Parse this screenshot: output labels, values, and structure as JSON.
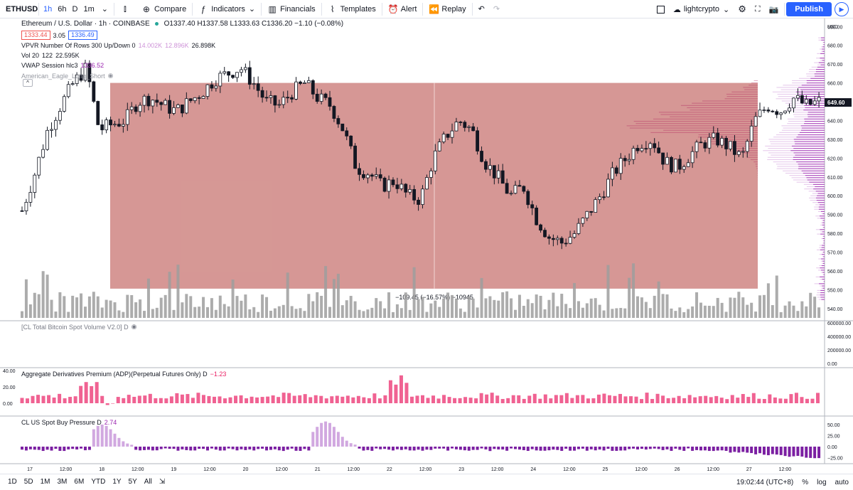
{
  "toolbar": {
    "symbol": "ETHUSD",
    "intervals": [
      "1h",
      "6h",
      "D",
      "1m"
    ],
    "compare": "Compare",
    "indicators": "Indicators",
    "financials": "Financials",
    "templates": "Templates",
    "alert": "Alert",
    "replay": "Replay",
    "layout_name": "lightcrypto",
    "publish": "Publish"
  },
  "legend": {
    "title": "Ethereum / U.S. Dollar · 1h · COINBASE",
    "ohlc": "O1337.40 H1337.58 L1333.63 C1336.20 −1.10 (−0.08%)",
    "bid": "1333.44",
    "spread": "3.05",
    "ask": "1336.49",
    "vpvr_label": "VPVR Number Of Rows 300 Up/Down 0",
    "vpvr_v1": "14.002K",
    "vpvr_v2": "12.896K",
    "vpvr_v3": "26.898K",
    "vol_label": "Vol 20",
    "vol_v1": "122",
    "vol_v2": "22.595K",
    "vwap_label": "VWAP Session hlc3",
    "vwap_value": "1336.52",
    "eagle_label": "American_Eagle_Long_Short"
  },
  "measure_label": "−109.45 (−16.57%) −10945",
  "price_axis": [
    "690.00",
    "680.00",
    "670.00",
    "660.00",
    "650.00",
    "640.00",
    "630.00",
    "620.00",
    "610.00",
    "600.00",
    "590.00",
    "580.00",
    "570.00",
    "560.00",
    "550.00",
    "540.00"
  ],
  "price_axis_unit": "USD",
  "last_price": "649.60",
  "panes": {
    "btc_volume": {
      "label": "[CL Total Bitcoin Spot Volume V2.0] D",
      "axis": [
        "600000.00",
        "400000.00",
        "200000.00",
        "0.00"
      ]
    },
    "adp": {
      "label": "Aggregate Derivatives Premium (ADP)(Perpetual Futures Only) D",
      "value": "−1.23",
      "axis": [
        "40.00",
        "20.00",
        "0.00"
      ]
    },
    "spot_buy": {
      "label": "CL US Spot Buy Pressure D",
      "value": "2.74",
      "axis": [
        "50.00",
        "25.00",
        "0.00",
        "−25.00"
      ]
    }
  },
  "time_axis": [
    "17",
    "12:00",
    "18",
    "12:00",
    "19",
    "12:00",
    "20",
    "12:00",
    "21",
    "12:00",
    "22",
    "12:00",
    "23",
    "12:00",
    "24",
    "12:00",
    "25",
    "12:00",
    "26",
    "12:00",
    "27",
    "12:00"
  ],
  "ranges": [
    "1D",
    "5D",
    "1M",
    "3M",
    "6M",
    "YTD",
    "1Y",
    "5Y",
    "All"
  ],
  "status": {
    "clock": "19:02:44 (UTC+8)",
    "percent": "%",
    "log": "log",
    "auto": "auto"
  },
  "colors": {
    "accent": "#2962ff",
    "up": "#ffffff",
    "down": "#131722",
    "zone": "#c0605c",
    "vpvr": "#9c27b0",
    "adp": "#f06292",
    "spot_buy_pos": "#d1a8e0",
    "spot_buy_neg": "#7b1fa2"
  },
  "chart_data": [
    {
      "type": "candlestick",
      "title": "Ethereum / U.S. Dollar · 1h · COINBASE",
      "ylim": [
        535,
        692
      ],
      "x": [
        "17",
        "18",
        "19",
        "20",
        "21",
        "22",
        "23",
        "24",
        "25",
        "26",
        "27"
      ],
      "close_path": [
        592,
        612,
        635,
        648,
        660,
        668,
        635,
        638,
        640,
        650,
        652,
        648,
        645,
        650,
        655,
        662,
        665,
        668,
        660,
        650,
        648,
        655,
        660,
        652,
        648,
        635,
        615,
        612,
        605,
        608,
        600,
        598,
        620,
        632,
        640,
        635,
        618,
        610,
        600,
        605,
        588,
        578,
        575,
        580,
        590,
        600,
        612,
        620,
        628,
        630,
        618,
        615,
        622,
        628,
        630,
        626,
        620,
        640,
        648,
        645,
        652,
        648,
        650
      ],
      "measure": {
        "from": 660,
        "to": 550.55,
        "label": "−109.45 (−16.57%) −10945"
      }
    },
    {
      "type": "bar",
      "title": "Aggregate Derivatives Premium (ADP)(Perpetual Futures Only) D",
      "ylim": [
        -10,
        40
      ]
    },
    {
      "type": "bar",
      "title": "CL US Spot Buy Pressure D",
      "ylim": [
        -30,
        55
      ]
    }
  ]
}
